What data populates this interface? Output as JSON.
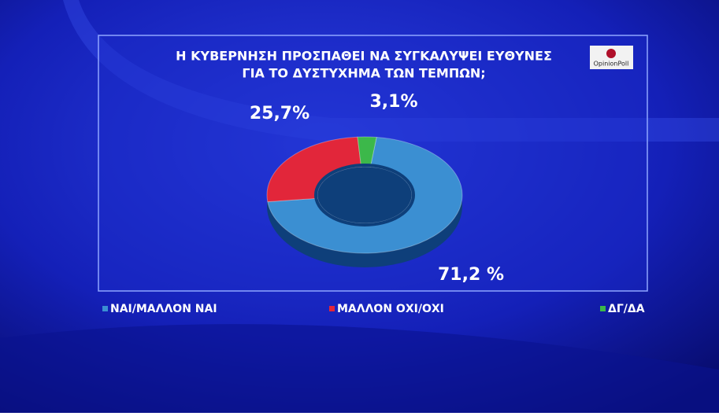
{
  "logo": "OpinionPoll",
  "chart_data": {
    "type": "pie",
    "title": [
      "Η ΚΥΒΕΡΝΗΣΗ ΠΡΟΣΠΑΘΕΙ ΝΑ ΣΥΓΚΑΛΥΨΕΙ ΕΥΘΥΝΕΣ",
      "ΓΙΑ ΤΟ ΔΥΣΤΥΧΗΜΑ ΤΩΝ ΤΕΜΠΩΝ;"
    ],
    "categories": [
      "ΝΑΙ/ΜΑΛΛΟΝ ΝΑΙ",
      "ΜΑΛΛΟΝ ΟΧΙ/ΟΧΙ",
      "ΔΓ/ΔΑ"
    ],
    "values": [
      71.2,
      25.7,
      3.1
    ],
    "value_labels": [
      "71,2 %",
      "25,7%",
      "3,1%"
    ],
    "colors": [
      "#3b8fd2",
      "#e2263a",
      "#3cb84a"
    ],
    "donut": true
  }
}
